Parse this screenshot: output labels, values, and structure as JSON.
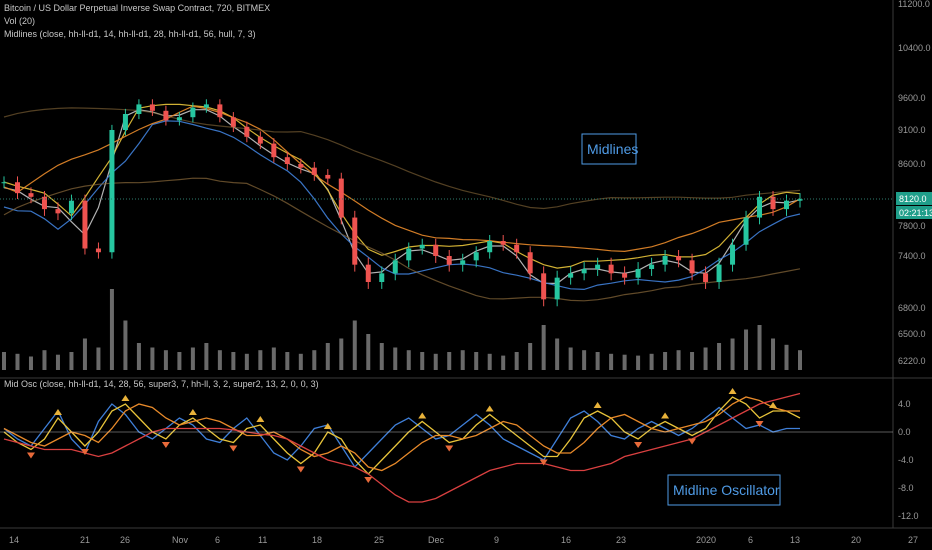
{
  "header": {
    "symbol_line": "Bitcoin / US Dollar Perpetual Inverse Swap Contract, 720, BITMEX",
    "vol_line": "Vol (20)",
    "midlines_line": "Midlines (close, hh-ll-d1, 14, hh-ll-d1, 28, hh-ll-d1, 56, hull, 7, 3)",
    "osc_line": "Mid Osc (close, hh-ll-d1, 14, 28, 56, super3, 7, hh-ll, 3, 2, super2, 13, 2, 0, 0, 3)"
  },
  "annotations": {
    "midlines": "Midlines",
    "oscillator": "Midline Oscillator"
  },
  "price_tags": {
    "last_price": "8120.0",
    "countdown": "02:21:13"
  },
  "chart_data": [
    {
      "type": "line",
      "panel": "price",
      "y_axis_ticks": [
        "11200.0",
        "10400.0",
        "9600.0",
        "9100.0",
        "8600.0",
        "8120.0",
        "7800.0",
        "7400.0",
        "6800.0",
        "6500.0",
        "6220.0"
      ],
      "x_axis_ticks": [
        "14",
        "21",
        "26",
        "Nov",
        "6",
        "11",
        "18",
        "25",
        "Dec",
        "9",
        "16",
        "23",
        "2020",
        "6",
        "13",
        "20",
        "27"
      ],
      "close_series_approx": [
        8350,
        8200,
        8150,
        8000,
        7950,
        8100,
        7500,
        7450,
        9100,
        9350,
        9500,
        9400,
        9250,
        9300,
        9450,
        9500,
        9300,
        9150,
        9000,
        8900,
        8700,
        8600,
        8550,
        8450,
        8400,
        7900,
        7300,
        7100,
        7200,
        7350,
        7500,
        7550,
        7400,
        7300,
        7350,
        7450,
        7600,
        7550,
        7450,
        7200,
        6900,
        7150,
        7200,
        7250,
        7300,
        7200,
        7150,
        7250,
        7300,
        7400,
        7350,
        7200,
        7100,
        7300,
        7550,
        7900,
        8150,
        8000,
        8100,
        8120
      ],
      "grid": false,
      "legend": "none"
    },
    {
      "type": "bar",
      "panel": "volume",
      "title": "Vol (20)",
      "values_relative": [
        0.2,
        0.18,
        0.15,
        0.22,
        0.17,
        0.2,
        0.35,
        0.25,
        0.9,
        0.55,
        0.3,
        0.25,
        0.22,
        0.2,
        0.25,
        0.3,
        0.22,
        0.2,
        0.18,
        0.22,
        0.25,
        0.2,
        0.18,
        0.22,
        0.3,
        0.35,
        0.55,
        0.4,
        0.3,
        0.25,
        0.22,
        0.2,
        0.18,
        0.2,
        0.22,
        0.2,
        0.18,
        0.16,
        0.2,
        0.3,
        0.5,
        0.35,
        0.25,
        0.22,
        0.2,
        0.18,
        0.17,
        0.16,
        0.18,
        0.2,
        0.22,
        0.2,
        0.25,
        0.3,
        0.35,
        0.45,
        0.5,
        0.35,
        0.28,
        0.22
      ]
    },
    {
      "type": "line",
      "panel": "oscillator",
      "y_axis_ticks": [
        "4.0",
        "0.0",
        "-4.0",
        "-8.0",
        "-12.0"
      ],
      "ylim": [
        -12,
        7
      ],
      "series": [
        {
          "color": "#3f7fd8",
          "values": [
            0.5,
            -1,
            -2,
            0.5,
            3,
            -1,
            -3,
            1.5,
            4,
            2.5,
            0,
            -1,
            0.5,
            2,
            1,
            -1,
            -1.5,
            0.5,
            2,
            -0.5,
            -3,
            -4,
            -2,
            0.5,
            1,
            -2,
            -5,
            -3,
            -1,
            1,
            2,
            0.5,
            -1,
            -0.5,
            1,
            2.5,
            1,
            -1,
            -2,
            -3,
            -4,
            -1,
            2,
            3,
            1.5,
            -0.5,
            -1,
            0.5,
            1.5,
            0.5,
            -0.5,
            0.5,
            2,
            3.5,
            2,
            0.5,
            1,
            0,
            0.5,
            0.5
          ]
        },
        {
          "color": "#e8c43a",
          "values": [
            0,
            -1.5,
            -2.5,
            -1,
            2,
            0,
            -2,
            0,
            3,
            4,
            2,
            0,
            -1,
            1,
            2,
            0.5,
            -1,
            -1.5,
            0.5,
            1,
            -1,
            -3,
            -4.5,
            -3,
            0,
            -1,
            -4,
            -6,
            -4,
            -2,
            0,
            1.5,
            0,
            -1.5,
            -1,
            1,
            2.5,
            1,
            -0.5,
            -2,
            -3.5,
            -3.5,
            -1,
            2,
            3,
            2,
            0,
            -1,
            0.5,
            1.5,
            0.5,
            -0.5,
            0.5,
            3,
            5,
            4,
            2,
            3,
            3,
            2
          ]
        },
        {
          "color": "#e88a2a",
          "values": [
            0.5,
            -0.5,
            -1.5,
            -2,
            -1,
            0,
            -0.5,
            -1.5,
            0.5,
            3,
            4,
            3.5,
            2,
            1,
            1.5,
            2,
            1.5,
            0.5,
            -0.5,
            -0.5,
            0,
            -1,
            -2.5,
            -3.5,
            -3,
            -2,
            -3,
            -5,
            -5.5,
            -4.5,
            -3,
            -1.5,
            -0.5,
            -0.5,
            -1,
            -0.5,
            0.5,
            1.5,
            1,
            -0.5,
            -2,
            -3,
            -3,
            -1.5,
            0.5,
            2,
            2.5,
            1.5,
            0.5,
            0,
            0.5,
            1,
            1.5,
            2.5,
            4,
            5,
            4.5,
            3.5,
            3,
            3
          ]
        },
        {
          "color": "#d94040",
          "values": [
            -1,
            -1.5,
            -2,
            -2.5,
            -2.5,
            -2.5,
            -3,
            -3.5,
            -3,
            -2,
            -1,
            0,
            0.5,
            0.5,
            0.5,
            0.5,
            0.5,
            0.3,
            0,
            -0.3,
            -0.5,
            -1,
            -2,
            -3,
            -4,
            -4.5,
            -5,
            -6,
            -7.5,
            -9,
            -10,
            -10,
            -9.5,
            -8.5,
            -7.5,
            -6.5,
            -5.5,
            -5,
            -4.5,
            -4.5,
            -4.5,
            -5,
            -5.5,
            -5.5,
            -5,
            -4.5,
            -3.5,
            -3,
            -2.5,
            -2,
            -1.5,
            -1,
            0,
            1,
            2,
            3,
            4,
            4.5,
            5,
            5.5
          ]
        }
      ],
      "grid": false,
      "legend": "none"
    }
  ]
}
